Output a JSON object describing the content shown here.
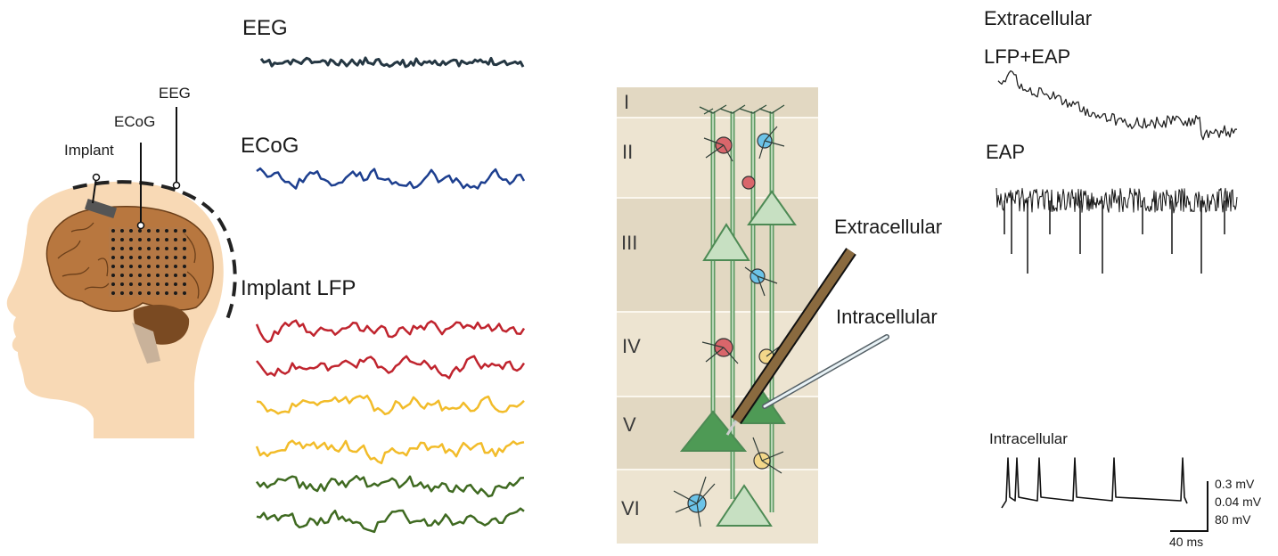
{
  "head": {
    "labels": {
      "implant": "Implant",
      "ecog": "ECoG",
      "eeg": "EEG"
    }
  },
  "traces": {
    "eeg_title": "EEG",
    "ecog_title": "ECoG",
    "lfp_title": "Implant LFP"
  },
  "cortex": {
    "layers": [
      "I",
      "II",
      "III",
      "IV",
      "V",
      "VI"
    ],
    "electrode_labels": {
      "extracellular": "Extracellular",
      "intracellular": "Intracellular"
    }
  },
  "recordings": {
    "title": "Extracellular",
    "lfp_eap": "LFP+EAP",
    "eap": "EAP",
    "intracellular": "Intracellular",
    "scale": {
      "v1": "0.3 mV",
      "v2": "0.04 mV",
      "v3": "80  mV",
      "time": "40 ms"
    }
  },
  "colors": {
    "eeg": "#253743",
    "ecog": "#1d3f8f",
    "lfp": [
      "#c0242e",
      "#c0242e",
      "#f2bc2a",
      "#f2bc2a",
      "#3f6a21",
      "#3f6a21"
    ],
    "skin": "#f8d9b5",
    "brain": "#b8773f",
    "cerebellum": "#7a4a22",
    "cortex_bg": "#ede4d1",
    "cortex_band": "#e2d8c2"
  }
}
